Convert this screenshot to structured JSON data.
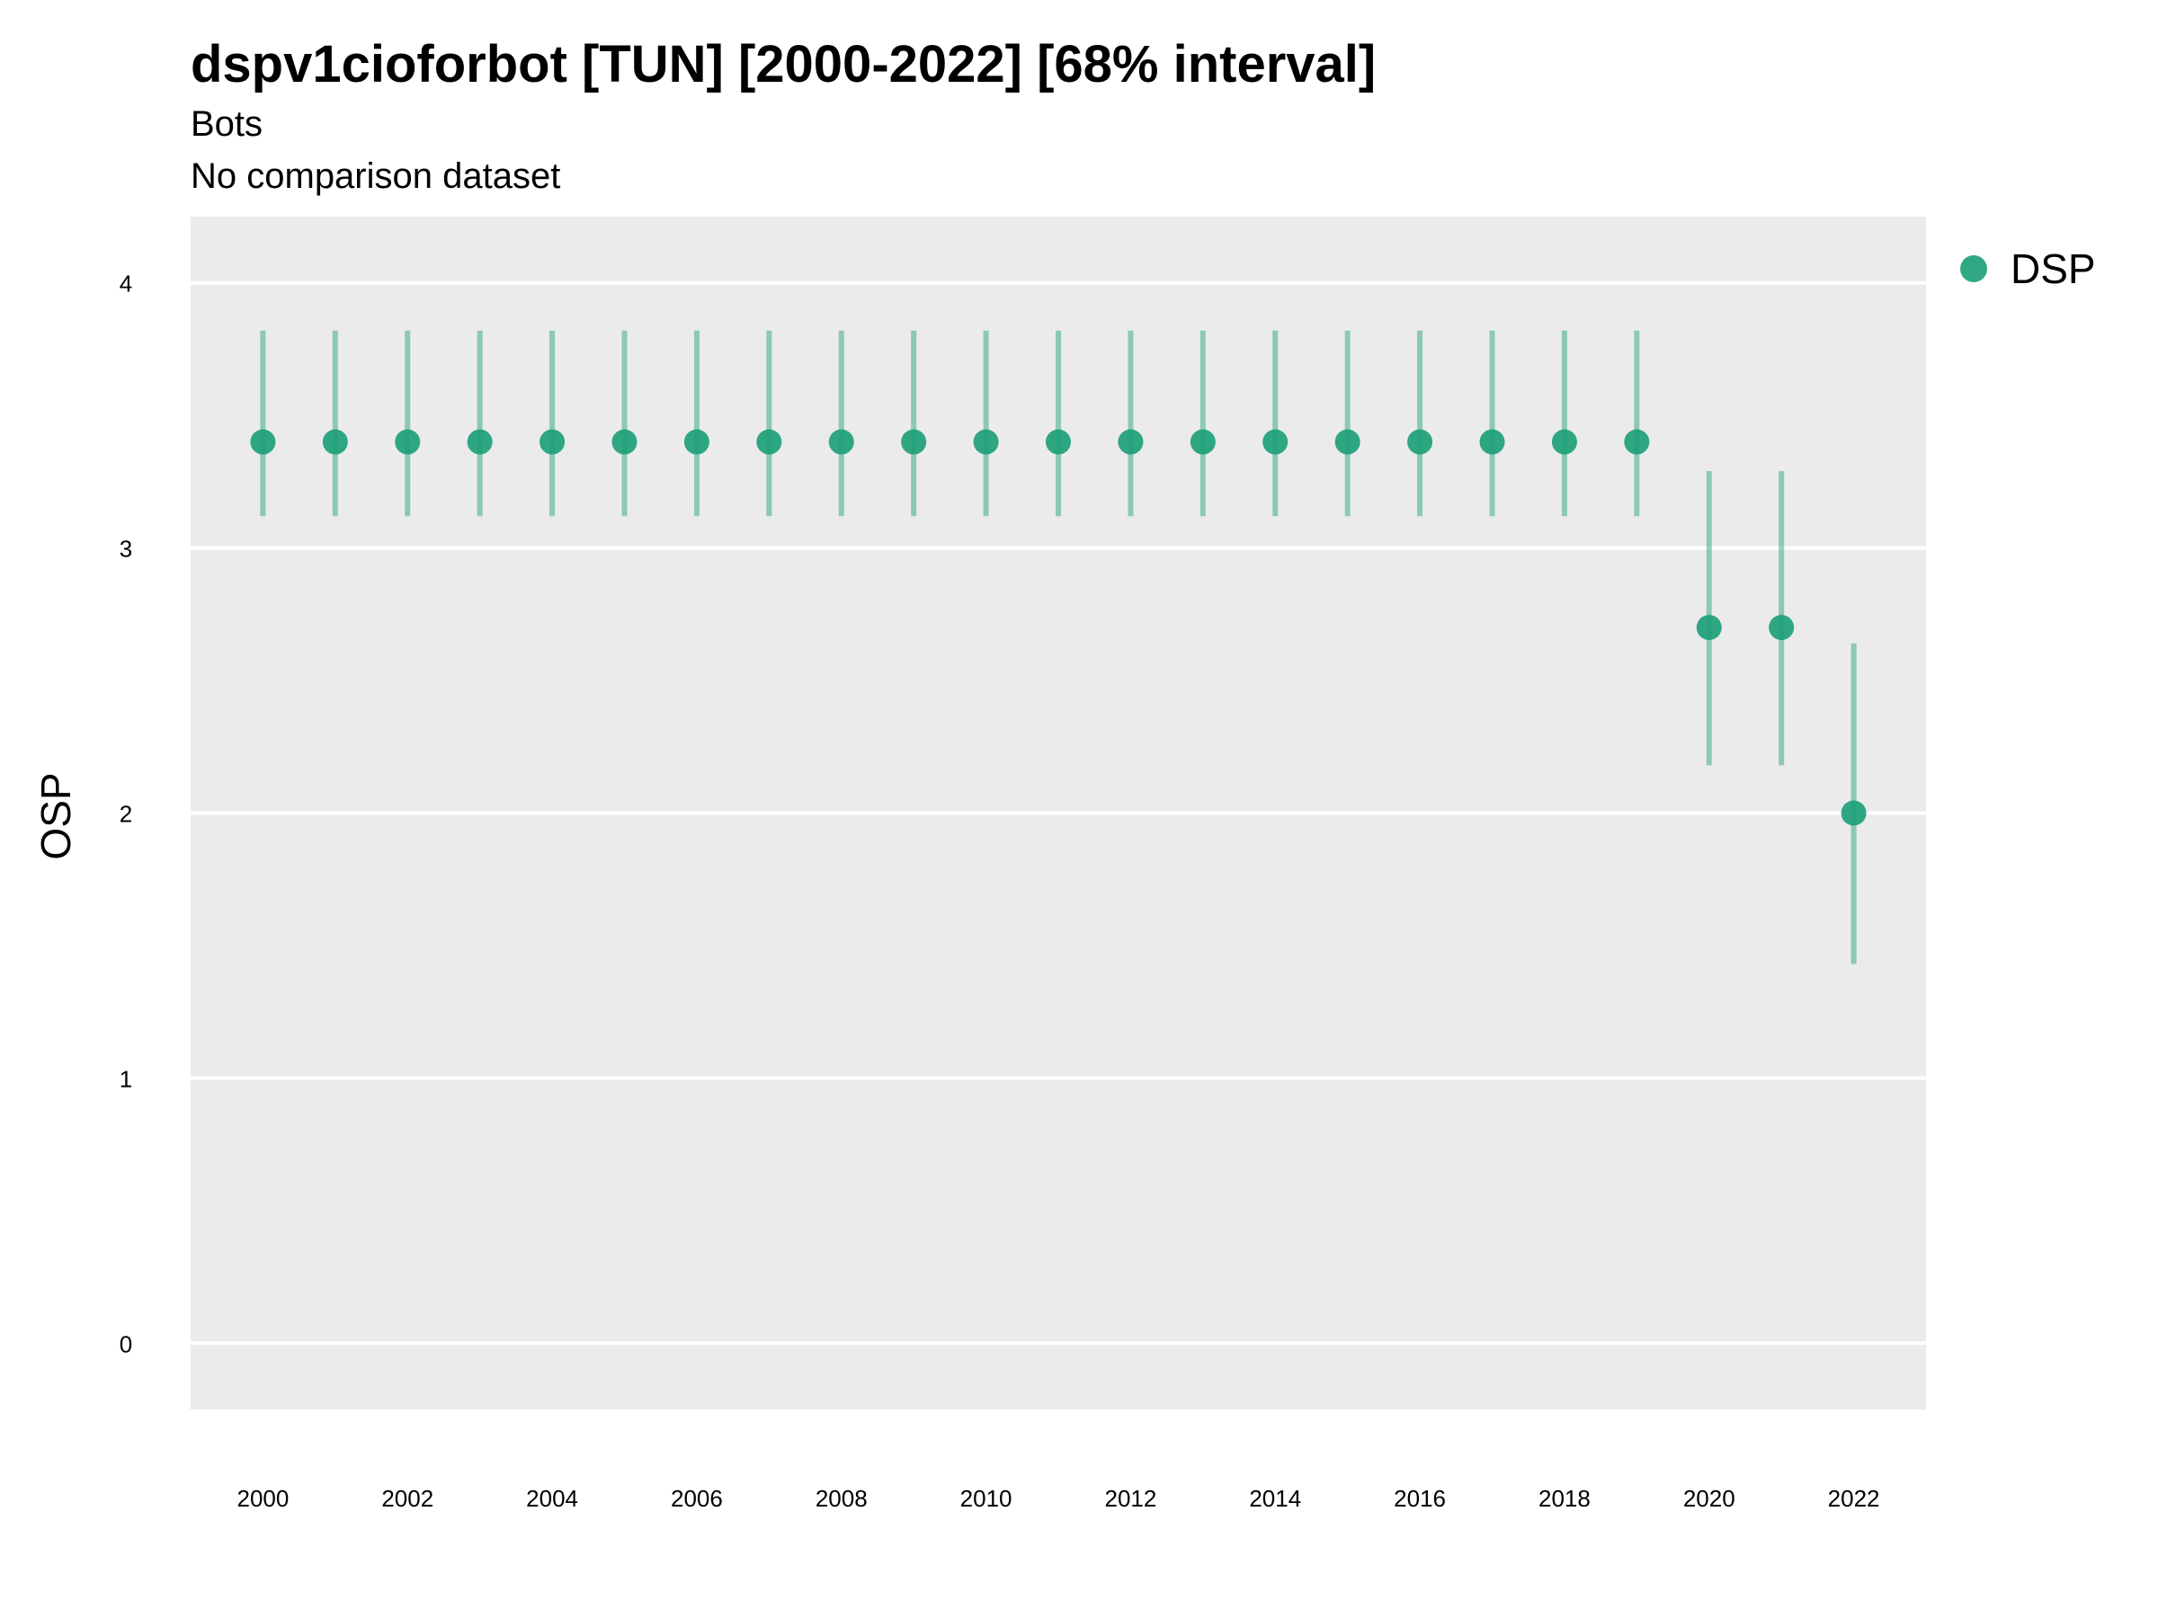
{
  "chart_data": {
    "type": "scatter",
    "title": "dspv1cioforbot [TUN] [2000-2022] [68% interval]",
    "subtitle": "Bots",
    "caption": "No comparison dataset",
    "xlabel": "",
    "ylabel": "OSP",
    "xlim": [
      1999,
      2023
    ],
    "ylim": [
      -0.25,
      4.25
    ],
    "x_ticks": [
      2000,
      2002,
      2004,
      2006,
      2008,
      2010,
      2012,
      2014,
      2016,
      2018,
      2020,
      2022
    ],
    "y_ticks": [
      0,
      1,
      2,
      3,
      4
    ],
    "grid": "horizontal",
    "legend_position": "right",
    "colors": {
      "series": "#1b9e77",
      "panel": "#ebebeb",
      "grid": "#ffffff"
    },
    "series": [
      {
        "name": "DSP",
        "x": [
          2000,
          2001,
          2002,
          2003,
          2004,
          2005,
          2006,
          2007,
          2008,
          2009,
          2010,
          2011,
          2012,
          2013,
          2014,
          2015,
          2016,
          2017,
          2018,
          2019,
          2020,
          2021,
          2022
        ],
        "y": [
          3.4,
          3.4,
          3.4,
          3.4,
          3.4,
          3.4,
          3.4,
          3.4,
          3.4,
          3.4,
          3.4,
          3.4,
          3.4,
          3.4,
          3.4,
          3.4,
          3.4,
          3.4,
          3.4,
          3.4,
          2.7,
          2.7,
          2.0
        ],
        "lower": [
          3.12,
          3.12,
          3.12,
          3.12,
          3.12,
          3.12,
          3.12,
          3.12,
          3.12,
          3.12,
          3.12,
          3.12,
          3.12,
          3.12,
          3.12,
          3.12,
          3.12,
          3.12,
          3.12,
          3.12,
          2.18,
          2.18,
          1.43
        ],
        "upper": [
          3.82,
          3.82,
          3.82,
          3.82,
          3.82,
          3.82,
          3.82,
          3.82,
          3.82,
          3.82,
          3.82,
          3.82,
          3.82,
          3.82,
          3.82,
          3.82,
          3.82,
          3.82,
          3.82,
          3.82,
          3.29,
          3.29,
          2.64
        ]
      }
    ]
  }
}
